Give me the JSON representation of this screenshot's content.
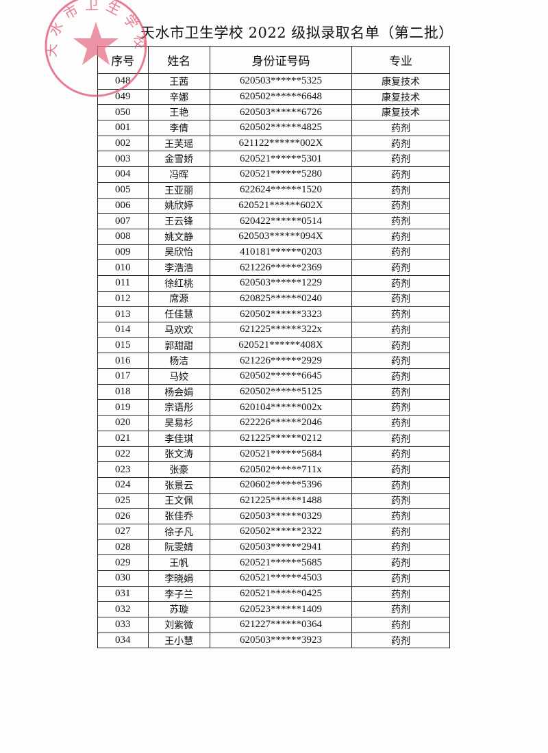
{
  "document": {
    "title": "天水市卫生学校 2022 级拟录取名单（第二批）",
    "stamp_text": "天水市卫生学校",
    "stamp_color": "#e0506e",
    "columns": [
      "序号",
      "姓名",
      "身份证号码",
      "专业"
    ],
    "rows": [
      [
        "048",
        "王茜",
        "620503******5325",
        "康复技术"
      ],
      [
        "049",
        "辛娜",
        "620502******6648",
        "康复技术"
      ],
      [
        "050",
        "王艳",
        "620503******6726",
        "康复技术"
      ],
      [
        "001",
        "李倩",
        "620502******4825",
        "药剂"
      ],
      [
        "002",
        "王芙瑶",
        "621122******002X",
        "药剂"
      ],
      [
        "003",
        "金雪娇",
        "620521******5301",
        "药剂"
      ],
      [
        "004",
        "冯晖",
        "620521******5280",
        "药剂"
      ],
      [
        "005",
        "王亚丽",
        "622624******1520",
        "药剂"
      ],
      [
        "006",
        "姚欣婷",
        "620521******602X",
        "药剂"
      ],
      [
        "007",
        "王云锋",
        "620422******0514",
        "药剂"
      ],
      [
        "008",
        "姚文静",
        "620503******094X",
        "药剂"
      ],
      [
        "009",
        "吴欣怡",
        "410181******0203",
        "药剂"
      ],
      [
        "010",
        "李浩浩",
        "621226******2369",
        "药剂"
      ],
      [
        "011",
        "徐红桃",
        "620503******1229",
        "药剂"
      ],
      [
        "012",
        "席源",
        "620825******0240",
        "药剂"
      ],
      [
        "013",
        "任佳慧",
        "620502******3323",
        "药剂"
      ],
      [
        "014",
        "马欢欢",
        "621225******322x",
        "药剂"
      ],
      [
        "015",
        "郭甜甜",
        "620521******408X",
        "药剂"
      ],
      [
        "016",
        "杨洁",
        "621226******2929",
        "药剂"
      ],
      [
        "017",
        "马姣",
        "620502******6645",
        "药剂"
      ],
      [
        "018",
        "杨会娟",
        "620502******5125",
        "药剂"
      ],
      [
        "019",
        "宗语彤",
        "620104******002x",
        "药剂"
      ],
      [
        "020",
        "吴易杉",
        "622226******2046",
        "药剂"
      ],
      [
        "021",
        "李佳琪",
        "621225******0212",
        "药剂"
      ],
      [
        "022",
        "张文涛",
        "620521******5684",
        "药剂"
      ],
      [
        "023",
        "张豪",
        "620502******711x",
        "药剂"
      ],
      [
        "024",
        "张景云",
        "620602******5396",
        "药剂"
      ],
      [
        "025",
        "王文佩",
        "621225******1488",
        "药剂"
      ],
      [
        "026",
        "张佳乔",
        "620503******0329",
        "药剂"
      ],
      [
        "027",
        "徐子凡",
        "620502******2322",
        "药剂"
      ],
      [
        "028",
        "阮雯婧",
        "620503******2941",
        "药剂"
      ],
      [
        "029",
        "王帆",
        "620521******5685",
        "药剂"
      ],
      [
        "030",
        "李晓娟",
        "620521******4503",
        "药剂"
      ],
      [
        "031",
        "李子兰",
        "620521******0425",
        "药剂"
      ],
      [
        "032",
        "苏璇",
        "620523******1409",
        "药剂"
      ],
      [
        "033",
        "刘紫微",
        "621227******0364",
        "药剂"
      ],
      [
        "034",
        "王小慧",
        "620503******3923",
        "药剂"
      ]
    ]
  }
}
